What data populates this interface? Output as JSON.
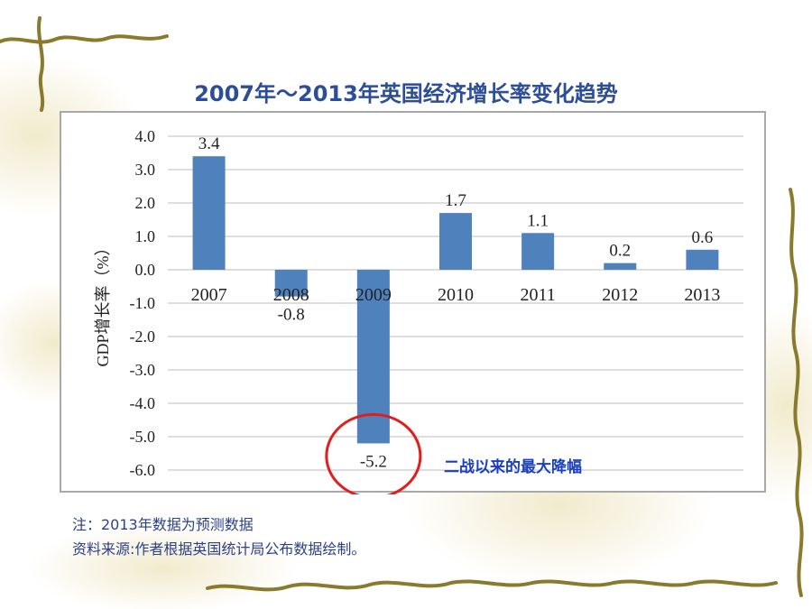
{
  "slide": {
    "title": "2007年～2013年英国经济增长率变化趋势",
    "notes": [
      "注：2013年数据为预测数据",
      "资料来源:作者根据英国统计局公布数据绘制。"
    ]
  },
  "colors": {
    "title": "#2c4d97",
    "bar": "#4f81bd",
    "annotation": "#1a3fbf",
    "highlight_circle": "#e31c1c",
    "frame": "#a8a8a8",
    "decor_vine": "#8a7a2e"
  },
  "chart_data": {
    "type": "bar",
    "title": "2007年～2013年英国经济增长率变化趋势",
    "categories": [
      "2007",
      "2008",
      "2009",
      "2010",
      "2011",
      "2012",
      "2013"
    ],
    "values": [
      3.4,
      -0.8,
      -5.2,
      1.7,
      1.1,
      0.2,
      0.6
    ],
    "data_labels": [
      "3.4",
      "-0.8",
      "-5.2",
      "1.7",
      "1.1",
      "0.2",
      "0.6"
    ],
    "ylabel": "GDP增长率（%）",
    "xlabel": "",
    "ylim": [
      -6.0,
      4.0
    ],
    "yticks": [
      "4.0",
      "3.0",
      "2.0",
      "1.0",
      "0.0",
      "-1.0",
      "-2.0",
      "-3.0",
      "-4.0",
      "-5.0",
      "-6.0"
    ],
    "grid": true,
    "legend": "none",
    "annotation": {
      "text": "二战以来的最大降幅",
      "target_category": "2009"
    }
  }
}
